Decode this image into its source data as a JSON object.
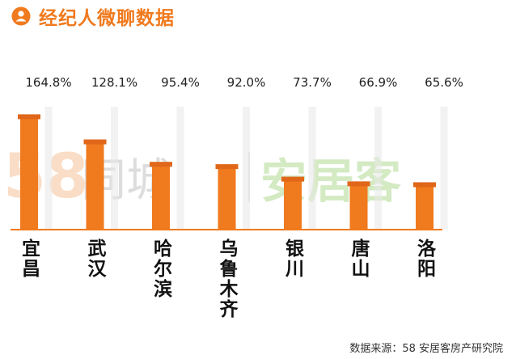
{
  "header": {
    "title": "经纪人微聊数据",
    "title_color": "#f07a1e",
    "icon": "person-circle-icon"
  },
  "watermark": {
    "part1": "58",
    "part2": "同城",
    "part3": "安居客"
  },
  "source": "数据来源：58 安居客房产研究院",
  "chart_data": {
    "type": "bar",
    "categories": [
      "宜昌",
      "武汉",
      "哈尔滨",
      "乌鲁木齐",
      "银川",
      "唐山",
      "洛阳"
    ],
    "values": [
      164.8,
      128.1,
      95.4,
      92.0,
      73.7,
      66.9,
      65.6
    ],
    "value_labels": [
      "164.8%",
      "128.1%",
      "95.4%",
      "92.0%",
      "73.7%",
      "66.9%",
      "65.6%"
    ],
    "ylim": [
      0,
      170
    ],
    "bar_color": "#f07a1e",
    "cap_color": "#e0671a",
    "bg_bar_color": "#e8e8e8",
    "baseline_color": "#f07a1e",
    "title": "经纪人微聊数据"
  }
}
